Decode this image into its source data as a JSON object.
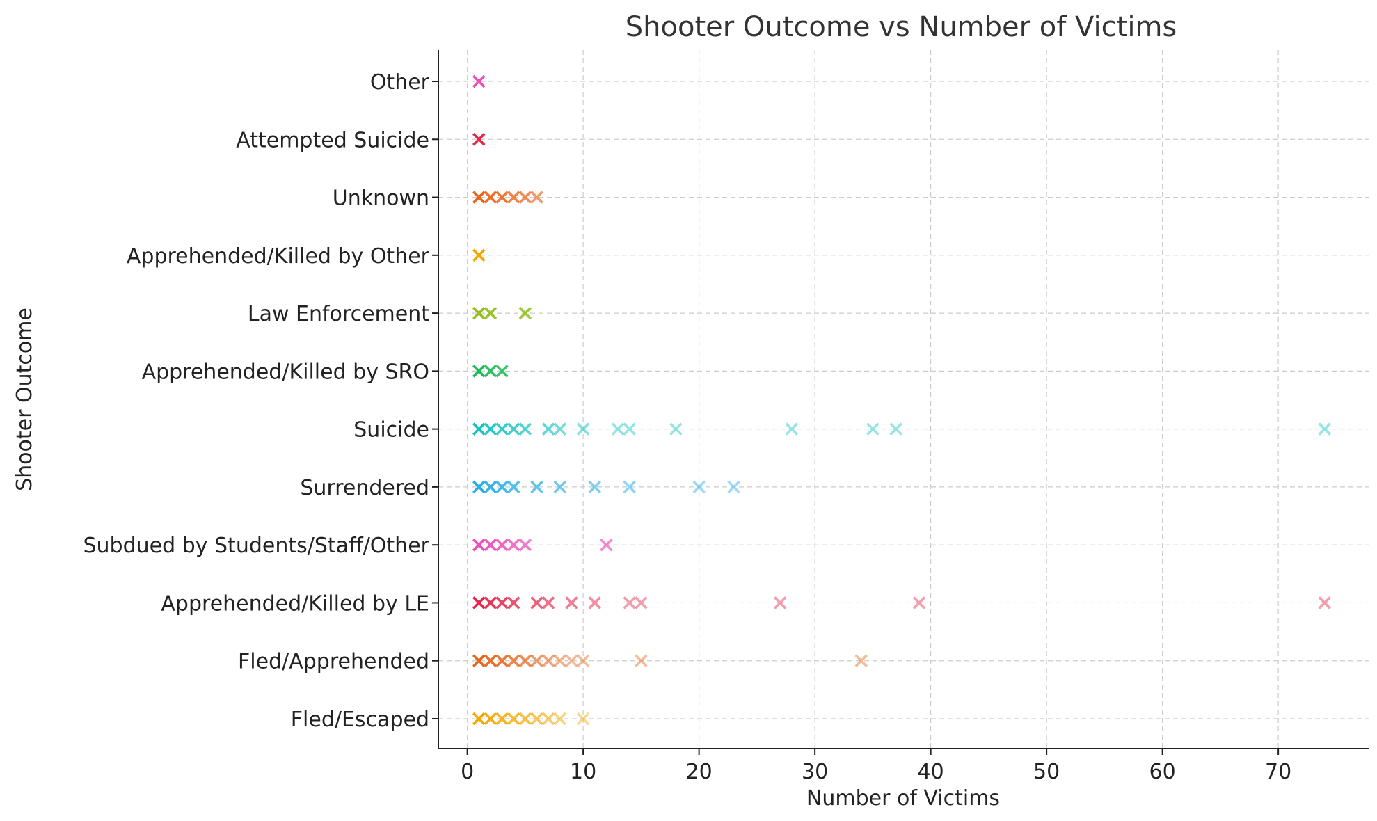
{
  "chart_data": {
    "type": "scatter",
    "title": "Shooter Outcome vs Number of Victims",
    "xlabel": "Number of Victims",
    "ylabel": "Shooter Outcome",
    "xlim": [
      -2.5,
      77.8
    ],
    "xticks": [
      0,
      10,
      20,
      30,
      40,
      50,
      60,
      70
    ],
    "grid": true,
    "marker": "x",
    "categories": [
      "Fled/Escaped",
      "Fled/Apprehended",
      "Apprehended/Killed by LE",
      "Subdued by Students/Staff/Other",
      "Surrendered",
      "Suicide",
      "Apprehended/Killed by SRO",
      "Law Enforcement",
      "Apprehended/Killed by Other",
      "Unknown",
      "Attempted Suicide",
      "Other"
    ],
    "series": [
      {
        "category": "Fled/Escaped",
        "color": "#f5a800",
        "x": [
          1,
          2,
          3,
          4,
          5,
          6,
          7,
          8,
          10
        ]
      },
      {
        "category": "Fled/Apprehended",
        "color": "#e8651a",
        "x": [
          1,
          2,
          3,
          4,
          5,
          6,
          7,
          8,
          9,
          10,
          15,
          34
        ]
      },
      {
        "category": "Apprehended/Killed by LE",
        "color": "#e6264a",
        "x": [
          1,
          2,
          3,
          4,
          6,
          7,
          9,
          11,
          14,
          15,
          27,
          39,
          74
        ]
      },
      {
        "category": "Subdued by Students/Staff/Other",
        "color": "#ec4fb9",
        "x": [
          1,
          2,
          3,
          4,
          5,
          12
        ]
      },
      {
        "category": "Surrendered",
        "color": "#26aee8",
        "x": [
          1,
          2,
          3,
          4,
          6,
          8,
          11,
          14,
          20,
          23
        ]
      },
      {
        "category": "Suicide",
        "color": "#12c4c0",
        "x": [
          1,
          2,
          3,
          4,
          5,
          7,
          8,
          10,
          13,
          14,
          18,
          28,
          35,
          37,
          74
        ]
      },
      {
        "category": "Apprehended/Killed by SRO",
        "color": "#1fbb5a",
        "x": [
          1,
          2,
          3
        ]
      },
      {
        "category": "Law Enforcement",
        "color": "#93c01f",
        "x": [
          1,
          2,
          5
        ]
      },
      {
        "category": "Apprehended/Killed by Other",
        "color": "#f5a800",
        "x": [
          1
        ]
      },
      {
        "category": "Unknown",
        "color": "#e8651a",
        "x": [
          1,
          2,
          3,
          4,
          5,
          6
        ]
      },
      {
        "category": "Attempted Suicide",
        "color": "#e6264a",
        "x": [
          1
        ]
      },
      {
        "category": "Other",
        "color": "#ec4fb9",
        "x": [
          1
        ]
      }
    ]
  }
}
